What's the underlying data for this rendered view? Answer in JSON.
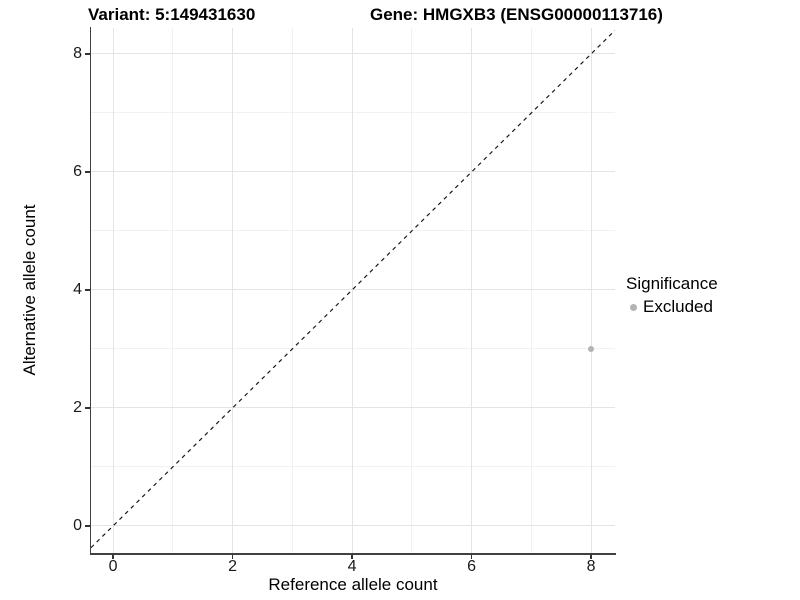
{
  "titles": {
    "variant": "Variant: 5:149431630",
    "gene": "Gene: HMGXB3 (ENSG00000113716)"
  },
  "axes": {
    "x": {
      "title": "Reference allele count"
    },
    "y": {
      "title": "Alternative allele count"
    }
  },
  "legend": {
    "title": "Significance",
    "items": [
      {
        "label": "Excluded",
        "color": "#b3b3b3"
      }
    ]
  },
  "colors": {
    "axis_line": "#404040",
    "major_grid": "#e4e4e4",
    "minor_grid": "#f1f1f1",
    "excluded_point": "#b3b3b3",
    "reference_line": "#1a1a1a"
  },
  "chart_data": {
    "type": "scatter",
    "title": "Variant: 5:149431630 | Gene: HMGXB3 (ENSG00000113716)",
    "xlabel": "Reference allele count",
    "ylabel": "Alternative allele count",
    "xlim": [
      -0.37,
      8.4
    ],
    "ylim": [
      -0.46,
      8.44
    ],
    "x_ticks": [
      0,
      2,
      4,
      6,
      8
    ],
    "y_ticks": [
      0,
      2,
      4,
      6,
      8
    ],
    "minor_ticks": [
      1,
      3,
      5,
      7
    ],
    "grid": true,
    "legend_position": "right",
    "reference_line": {
      "type": "abline",
      "slope": 1,
      "intercept": 0,
      "style": "dashed",
      "color": "#1a1a1a"
    },
    "series": [
      {
        "name": "Excluded",
        "color": "#b3b3b3",
        "points": [
          {
            "x": 8,
            "y": 3
          }
        ]
      }
    ]
  }
}
